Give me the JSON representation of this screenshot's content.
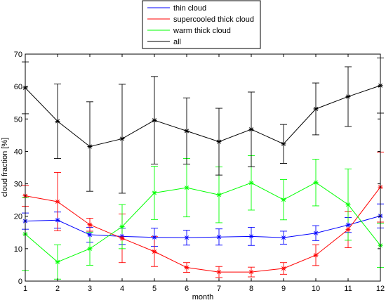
{
  "chart_data": {
    "type": "line",
    "xlabel": "month",
    "ylabel": "cloud fraction [%]",
    "xlim": [
      1,
      12
    ],
    "ylim": [
      0,
      70
    ],
    "xticks": [
      1,
      2,
      3,
      4,
      5,
      6,
      7,
      8,
      9,
      10,
      11,
      12
    ],
    "yticks": [
      0,
      10,
      20,
      30,
      40,
      50,
      60,
      70
    ],
    "grid": false,
    "legend_position": "top-center-outside",
    "x": [
      1,
      2,
      3,
      4,
      5,
      6,
      7,
      8,
      9,
      10,
      11,
      12
    ],
    "series": [
      {
        "name": "thin cloud",
        "color": "#0000ff",
        "values": [
          18.5,
          18.8,
          14.3,
          13.8,
          13.5,
          13.4,
          13.6,
          13.8,
          13.4,
          14.8,
          17.3,
          20.1
        ],
        "err": [
          2.5,
          2.5,
          2.3,
          2.5,
          2.8,
          2.3,
          2.5,
          2.8,
          2.0,
          2.3,
          2.3,
          3.7
        ]
      },
      {
        "name": "supercooled thick cloud",
        "color": "#ff0000",
        "values": [
          26.3,
          24.5,
          17.4,
          13.2,
          9.1,
          4.2,
          2.8,
          2.8,
          3.9,
          8.0,
          15.9,
          29.0
        ],
        "err": [
          3.2,
          9.0,
          2.0,
          7.5,
          4.6,
          1.5,
          1.7,
          1.5,
          1.8,
          3.2,
          5.6,
          10.8
        ]
      },
      {
        "name": "warm thick cloud",
        "color": "#00ff00",
        "values": [
          14.5,
          5.9,
          10.0,
          16.8,
          27.2,
          28.8,
          26.6,
          30.3,
          25.1,
          30.4,
          23.6,
          11.0
        ],
        "err": [
          11.2,
          5.3,
          5.1,
          6.8,
          8.2,
          9.0,
          8.6,
          8.4,
          6.2,
          7.2,
          11.0,
          6.8
        ]
      },
      {
        "name": "all",
        "color": "#000000",
        "values": [
          59.6,
          49.3,
          41.5,
          43.9,
          49.6,
          46.3,
          43.0,
          46.8,
          42.3,
          53.1,
          56.9,
          60.3
        ],
        "err": [
          8.0,
          11.5,
          13.8,
          16.8,
          13.5,
          10.2,
          10.3,
          11.5,
          6.0,
          8.0,
          9.2,
          8.5
        ]
      }
    ]
  }
}
